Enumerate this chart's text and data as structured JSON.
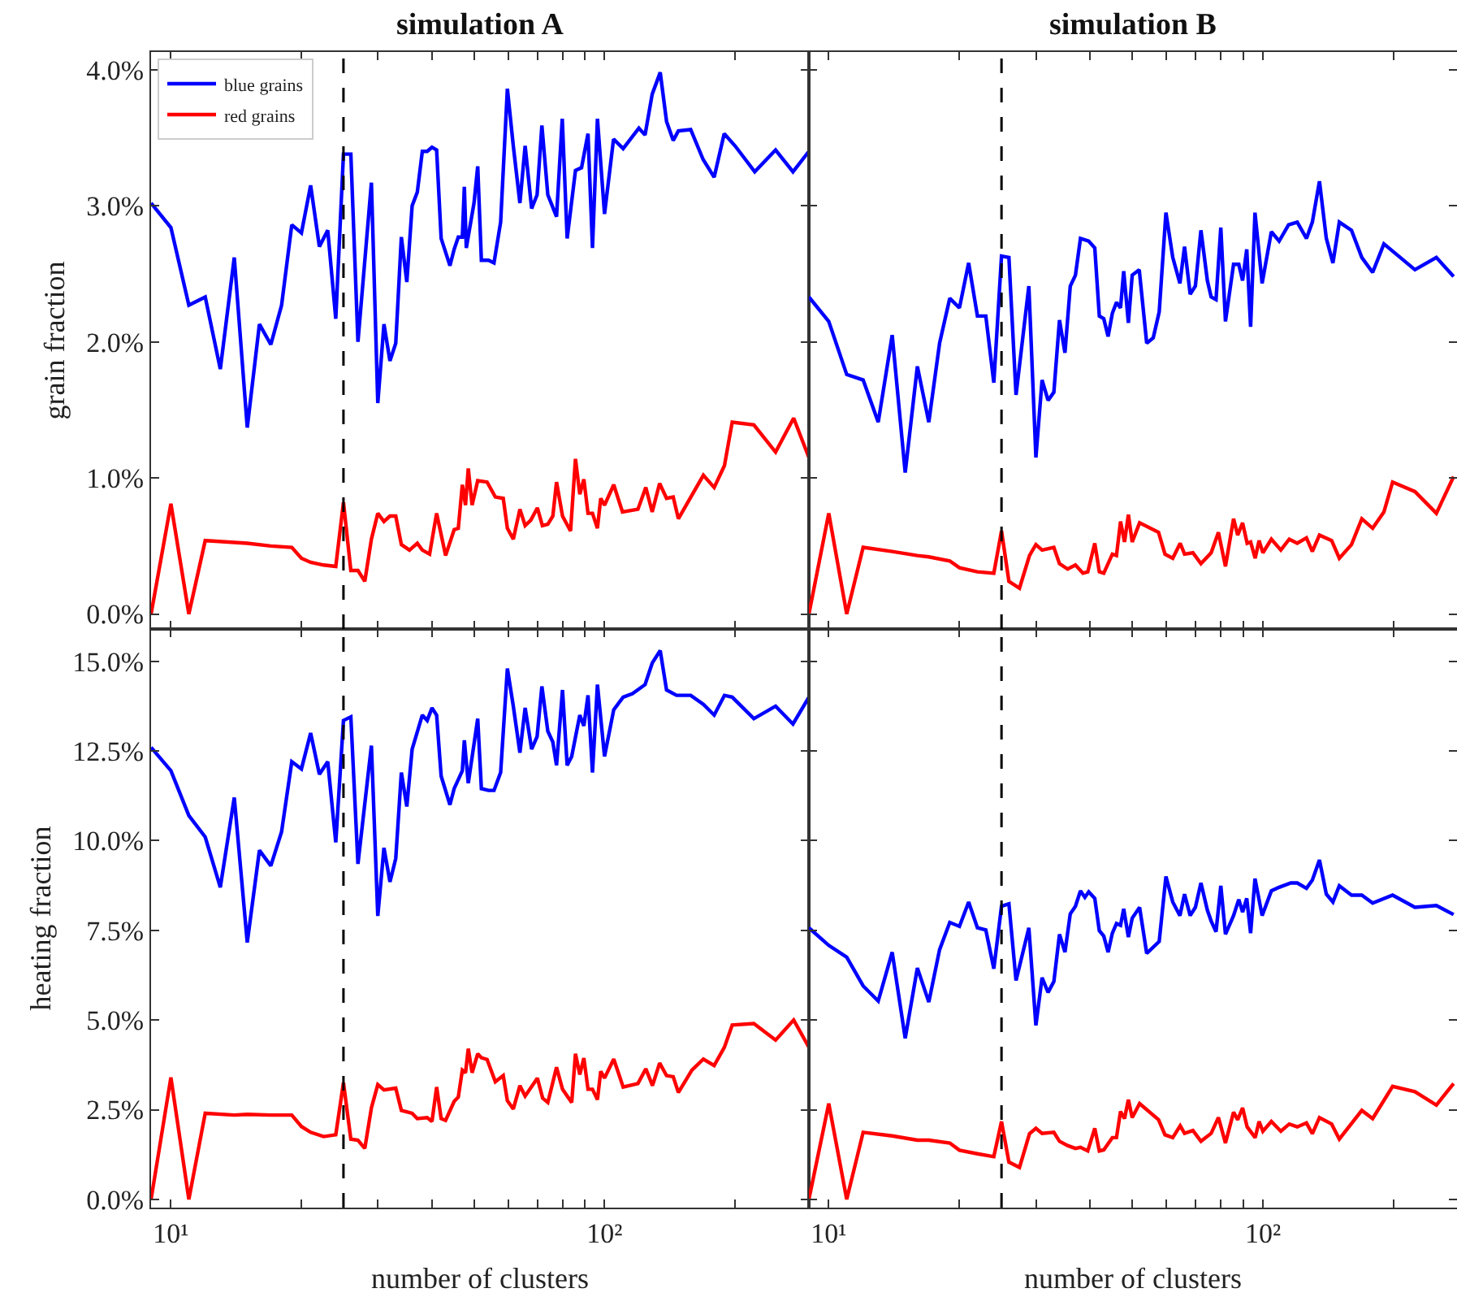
{
  "chart_data": [
    {
      "type": "line",
      "title": "simulation A",
      "ylabel": "grain fraction",
      "log": "x",
      "legend": "top left",
      "tick_labels": "y",
      "xlim": [
        9,
        296
      ],
      "ylim": [
        -0.11,
        4.13
      ],
      "xticks": [
        {
          "value": 9,
          "label": null
        },
        {
          "value": 10,
          "label": null
        },
        {
          "value": 20,
          "label": null
        },
        {
          "value": 30,
          "label": null
        },
        {
          "value": 40,
          "label": null
        },
        {
          "value": 50,
          "label": null
        },
        {
          "value": 60,
          "label": null
        },
        {
          "value": 70,
          "label": null
        },
        {
          "value": 80,
          "label": null
        },
        {
          "value": 90,
          "label": null
        },
        {
          "value": 100,
          "label": null
        },
        {
          "value": 200,
          "label": null
        }
      ],
      "yticks": [
        {
          "value": 0,
          "label": "0.0%"
        },
        {
          "value": 1,
          "label": "1.0%"
        },
        {
          "value": 2,
          "label": "2.0%"
        },
        {
          "value": 3,
          "label": "3.0%"
        },
        {
          "value": 4,
          "label": "4.0%"
        }
      ],
      "ref_lines": [
        {
          "axis": "x",
          "value": 25,
          "color": "#000000",
          "line_style": "dashed"
        }
      ],
      "series": [
        {
          "name": "blue grains",
          "color": "#0000ff",
          "x": [
            9,
            10,
            11,
            12,
            13,
            14,
            15,
            16,
            17,
            18,
            19,
            20,
            21,
            22,
            23,
            24,
            25,
            26,
            27,
            29,
            30,
            31,
            32,
            33,
            34,
            35,
            36,
            37,
            38,
            39,
            40,
            41,
            42,
            44,
            45,
            46,
            47,
            47.5,
            48,
            50,
            51,
            52,
            54,
            55.6,
            57.6,
            59.7,
            61.6,
            63.8,
            65.6,
            67.9,
            69.9,
            71.7,
            74,
            77.5,
            79.9,
            82,
            85.7,
            88.5,
            91.6,
            93.8,
            96.3,
            100,
            104.9,
            110.4,
            120,
            124,
            128.8,
            134.4,
            139,
            144,
            148,
            158,
            168.8,
            179,
            188.8,
            200,
            222,
            248,
            272,
            296
          ],
          "values": [
            3.02,
            2.84,
            2.27,
            2.33,
            1.8,
            2.62,
            1.37,
            2.13,
            1.98,
            2.27,
            2.86,
            2.8,
            3.15,
            2.7,
            2.82,
            2.17,
            3.38,
            3.38,
            2.0,
            3.17,
            1.55,
            2.13,
            1.86,
            1.99,
            2.77,
            2.44,
            3.0,
            3.1,
            3.4,
            3.4,
            3.43,
            3.41,
            2.76,
            2.56,
            2.68,
            2.77,
            2.77,
            3.14,
            2.69,
            3.02,
            3.29,
            2.6,
            2.6,
            2.58,
            2.88,
            3.86,
            3.44,
            3.02,
            3.44,
            2.98,
            3.08,
            3.59,
            3.08,
            2.92,
            3.64,
            2.76,
            3.26,
            3.28,
            3.53,
            2.69,
            3.64,
            2.94,
            3.49,
            3.42,
            3.57,
            3.52,
            3.82,
            3.98,
            3.62,
            3.48,
            3.55,
            3.56,
            3.34,
            3.21,
            3.53,
            3.44,
            3.25,
            3.41,
            3.25,
            3.4
          ]
        },
        {
          "name": "red grains",
          "color": "#ff0000",
          "x": [
            9,
            10,
            11,
            12,
            15,
            17,
            19,
            20,
            21,
            22.5,
            24,
            25,
            26,
            27,
            28,
            29,
            30,
            31,
            32,
            33,
            34,
            35.5,
            37,
            38,
            39.5,
            41,
            43,
            45,
            46,
            47,
            47.8,
            48.5,
            49.5,
            51,
            53.6,
            56,
            58.4,
            59.7,
            61.6,
            63.8,
            65.6,
            67.6,
            70,
            71.9,
            74,
            76,
            77.5,
            80,
            83.5,
            85.7,
            87.7,
            89.6,
            91.6,
            93.8,
            96.3,
            98,
            100,
            105,
            110,
            119.4,
            124.5,
            128.8,
            134,
            139,
            144,
            148,
            169,
            179,
            189,
            197,
            221,
            248,
            273,
            296
          ],
          "values": [
            0,
            0.81,
            0,
            0.54,
            0.52,
            0.5,
            0.49,
            0.41,
            0.38,
            0.36,
            0.35,
            0.82,
            0.32,
            0.32,
            0.24,
            0.55,
            0.74,
            0.68,
            0.72,
            0.72,
            0.51,
            0.47,
            0.52,
            0.47,
            0.44,
            0.74,
            0.43,
            0.62,
            0.63,
            0.95,
            0.8,
            1.07,
            0.8,
            0.98,
            0.97,
            0.86,
            0.85,
            0.63,
            0.55,
            0.77,
            0.65,
            0.69,
            0.78,
            0.65,
            0.66,
            0.72,
            0.97,
            0.72,
            0.61,
            1.14,
            0.88,
            0.99,
            0.74,
            0.74,
            0.63,
            0.85,
            0.8,
            0.95,
            0.75,
            0.77,
            0.93,
            0.75,
            0.96,
            0.85,
            0.86,
            0.7,
            1.02,
            0.93,
            1.09,
            1.41,
            1.39,
            1.19,
            1.44,
            1.15
          ]
        }
      ]
    },
    {
      "type": "line",
      "title": "simulation B",
      "log": "x",
      "tick_labels": false,
      "xlim": [
        9,
        280
      ],
      "ylim": [
        -0.11,
        4.13
      ],
      "xticks": [
        {
          "value": 9,
          "label": null
        },
        {
          "value": 10,
          "label": null
        },
        {
          "value": 20,
          "label": null
        },
        {
          "value": 30,
          "label": null
        },
        {
          "value": 40,
          "label": null
        },
        {
          "value": 50,
          "label": null
        },
        {
          "value": 60,
          "label": null
        },
        {
          "value": 70,
          "label": null
        },
        {
          "value": 80,
          "label": null
        },
        {
          "value": 90,
          "label": null
        },
        {
          "value": 100,
          "label": null
        },
        {
          "value": 200,
          "label": null
        }
      ],
      "yticks": [
        {
          "value": 0,
          "label": null
        },
        {
          "value": 1,
          "label": null
        },
        {
          "value": 2,
          "label": null
        },
        {
          "value": 3,
          "label": null
        },
        {
          "value": 4,
          "label": null
        }
      ],
      "ref_lines": [
        {
          "axis": "x",
          "value": 25,
          "color": "#000000",
          "line_style": "dashed"
        }
      ],
      "series": [
        {
          "color": "#0000ff",
          "x": [
            9,
            10,
            11,
            12,
            13,
            14,
            15,
            16,
            17,
            18,
            19,
            20,
            21,
            22,
            23,
            24,
            25,
            26,
            27,
            28.9,
            30,
            31,
            32,
            33,
            34,
            35,
            36,
            37,
            38,
            39.7,
            41,
            42,
            43,
            44,
            45,
            46,
            47,
            47.8,
            49,
            50,
            51.9,
            54,
            55.9,
            57.7,
            59.8,
            62,
            64.4,
            66,
            68,
            69.9,
            72,
            74.5,
            76,
            78,
            80,
            82,
            85.6,
            88,
            89.8,
            91.8,
            93.7,
            95.9,
            99.6,
            104.6,
            109,
            114.6,
            120,
            126,
            130,
            135,
            140,
            145,
            150,
            160,
            169,
            179,
            190,
            224,
            251,
            275
          ],
          "values": [
            2.33,
            2.15,
            1.76,
            1.72,
            1.41,
            2.05,
            1.04,
            1.82,
            1.41,
            1.99,
            2.32,
            2.25,
            2.58,
            2.19,
            2.19,
            1.7,
            2.63,
            2.62,
            1.61,
            2.41,
            1.15,
            1.72,
            1.57,
            1.63,
            2.16,
            1.92,
            2.41,
            2.49,
            2.76,
            2.74,
            2.69,
            2.19,
            2.17,
            2.04,
            2.21,
            2.29,
            2.25,
            2.52,
            2.14,
            2.49,
            2.53,
            1.99,
            2.03,
            2.22,
            2.95,
            2.62,
            2.43,
            2.7,
            2.35,
            2.41,
            2.82,
            2.45,
            2.33,
            2.31,
            2.84,
            2.15,
            2.57,
            2.57,
            2.45,
            2.68,
            2.11,
            2.95,
            2.43,
            2.81,
            2.74,
            2.86,
            2.88,
            2.76,
            2.88,
            3.18,
            2.76,
            2.58,
            2.88,
            2.82,
            2.62,
            2.51,
            2.72,
            2.53,
            2.62,
            2.48
          ]
        },
        {
          "color": "#ff0000",
          "x": [
            9,
            10,
            11,
            12,
            14,
            16,
            17,
            19,
            20,
            22,
            24,
            25,
            26,
            27.5,
            29,
            30,
            31,
            33,
            34,
            35.5,
            37,
            38.5,
            39.5,
            41,
            42,
            43,
            45,
            46,
            47,
            48,
            49,
            50,
            52,
            57.5,
            59.5,
            62,
            64.5,
            66,
            69,
            72,
            76,
            79,
            82,
            85.6,
            87.5,
            89.8,
            92,
            93.7,
            96,
            98,
            100,
            104.6,
            110,
            115,
            120,
            126,
            130,
            135,
            144,
            150,
            160,
            169,
            179,
            190,
            199,
            224,
            251,
            275
          ],
          "values": [
            0,
            0.74,
            0,
            0.49,
            0.46,
            0.43,
            0.42,
            0.39,
            0.34,
            0.31,
            0.3,
            0.61,
            0.24,
            0.19,
            0.43,
            0.51,
            0.47,
            0.49,
            0.37,
            0.33,
            0.36,
            0.3,
            0.31,
            0.52,
            0.31,
            0.3,
            0.44,
            0.43,
            0.68,
            0.53,
            0.73,
            0.53,
            0.67,
            0.6,
            0.44,
            0.41,
            0.52,
            0.44,
            0.45,
            0.37,
            0.45,
            0.6,
            0.35,
            0.7,
            0.58,
            0.67,
            0.52,
            0.53,
            0.41,
            0.54,
            0.45,
            0.55,
            0.47,
            0.55,
            0.52,
            0.56,
            0.46,
            0.58,
            0.54,
            0.41,
            0.51,
            0.7,
            0.63,
            0.75,
            0.97,
            0.9,
            0.74,
            1.01
          ]
        }
      ]
    },
    {
      "type": "line",
      "ylabel": "heating fraction",
      "xlabel": "number of clusters",
      "log": "x",
      "xlim": [
        9,
        296
      ],
      "ylim": [
        -0.23,
        15.9
      ],
      "xticks": [
        {
          "value": 9,
          "label": null
        },
        {
          "value": 10,
          "label": "10¹"
        },
        {
          "value": 20,
          "label": null
        },
        {
          "value": 30,
          "label": null
        },
        {
          "value": 40,
          "label": null
        },
        {
          "value": 50,
          "label": null
        },
        {
          "value": 60,
          "label": null
        },
        {
          "value": 70,
          "label": null
        },
        {
          "value": 80,
          "label": null
        },
        {
          "value": 90,
          "label": null
        },
        {
          "value": 100,
          "label": "10²"
        },
        {
          "value": 200,
          "label": null
        }
      ],
      "yticks": [
        {
          "value": 0,
          "label": "0.0%"
        },
        {
          "value": 2.5,
          "label": "2.5%"
        },
        {
          "value": 5,
          "label": "5.0%"
        },
        {
          "value": 7.5,
          "label": "7.5%"
        },
        {
          "value": 10,
          "label": "10.0%"
        },
        {
          "value": 12.5,
          "label": "12.5%"
        },
        {
          "value": 15,
          "label": "15.0%"
        }
      ],
      "ref_lines": [
        {
          "axis": "x",
          "value": 25,
          "color": "#000000",
          "line_style": "dashed"
        }
      ],
      "series": [
        {
          "color": "#0000ff",
          "x": [
            9,
            10,
            11,
            12,
            13,
            14,
            15,
            16,
            17,
            18,
            19,
            20,
            21,
            22,
            23,
            24,
            25,
            26,
            27,
            29,
            30,
            31,
            32,
            33,
            34,
            35,
            36,
            38,
            39,
            40,
            41,
            42,
            44,
            45,
            47,
            47.5,
            48.5,
            51,
            52,
            54,
            55.6,
            57.6,
            59.7,
            61.6,
            63.8,
            65.6,
            67.9,
            69.9,
            71.7,
            74,
            76,
            77.5,
            80,
            82,
            84,
            87.7,
            89.6,
            91.6,
            93.8,
            96.3,
            100,
            105,
            110.4,
            116,
            124,
            128.8,
            134.4,
            139,
            146.6,
            158,
            169,
            179,
            189,
            197,
            221,
            248,
            272,
            296
          ],
          "values": [
            12.6,
            11.95,
            10.7,
            10.1,
            8.7,
            11.2,
            7.16,
            9.73,
            9.3,
            10.25,
            12.2,
            12.0,
            13.0,
            11.85,
            12.2,
            9.95,
            13.35,
            13.45,
            9.35,
            12.65,
            7.9,
            9.8,
            8.85,
            9.5,
            11.9,
            10.95,
            12.55,
            13.5,
            13.35,
            13.7,
            13.5,
            11.8,
            11.0,
            11.45,
            11.95,
            12.8,
            11.6,
            13.4,
            11.45,
            11.4,
            11.4,
            11.9,
            14.8,
            13.75,
            12.45,
            13.7,
            12.55,
            12.9,
            14.3,
            13.05,
            12.75,
            12.1,
            14.2,
            12.1,
            12.35,
            13.5,
            13.2,
            14.05,
            11.9,
            14.35,
            12.35,
            13.65,
            14.0,
            14.1,
            14.35,
            14.95,
            15.3,
            14.2,
            14.05,
            14.05,
            13.8,
            13.5,
            14.05,
            14.0,
            13.4,
            13.75,
            13.25,
            14.0
          ]
        },
        {
          "color": "#ff0000",
          "x": [
            9,
            10,
            11,
            12,
            14,
            15,
            17,
            19,
            20,
            21,
            22.5,
            24,
            25,
            26,
            27,
            28,
            29,
            30,
            31,
            33,
            34,
            36,
            37,
            39,
            40,
            41,
            42,
            43,
            45,
            46,
            47,
            47.8,
            48.5,
            49.5,
            51,
            52,
            53.6,
            56,
            58.4,
            59.7,
            61.6,
            63.8,
            65.6,
            70,
            72,
            74,
            77.5,
            80,
            84,
            85.7,
            87.7,
            89.6,
            91.6,
            93.8,
            96.3,
            98,
            100,
            105,
            110.4,
            119.4,
            124.5,
            129,
            134,
            139,
            144,
            148,
            159,
            169,
            179,
            189,
            197,
            221,
            248,
            273,
            296
          ],
          "values": [
            0,
            3.4,
            0,
            2.4,
            2.35,
            2.37,
            2.35,
            2.35,
            2.03,
            1.87,
            1.75,
            1.8,
            3.25,
            1.68,
            1.65,
            1.42,
            2.55,
            3.2,
            3.05,
            3.1,
            2.48,
            2.4,
            2.25,
            2.28,
            2.17,
            3.13,
            2.25,
            2.2,
            2.73,
            2.85,
            3.6,
            3.53,
            4.2,
            3.53,
            4.06,
            3.95,
            3.9,
            3.28,
            3.45,
            2.75,
            2.52,
            3.17,
            2.88,
            3.38,
            2.82,
            2.7,
            3.68,
            3.07,
            2.7,
            4.06,
            3.48,
            3.94,
            3.07,
            3.07,
            2.78,
            3.57,
            3.38,
            3.91,
            3.13,
            3.23,
            3.64,
            3.17,
            3.8,
            3.45,
            3.42,
            2.98,
            3.6,
            3.91,
            3.73,
            4.24,
            4.86,
            4.9,
            4.44,
            5.0,
            4.24
          ]
        }
      ]
    },
    {
      "type": "line",
      "xlabel": "number of clusters",
      "log": "x",
      "tick_labels": "x",
      "xlim": [
        9,
        280
      ],
      "ylim": [
        -0.23,
        15.9
      ],
      "xticks": [
        {
          "value": 9,
          "label": null
        },
        {
          "value": 10,
          "label": "10¹"
        },
        {
          "value": 20,
          "label": null
        },
        {
          "value": 30,
          "label": null
        },
        {
          "value": 40,
          "label": null
        },
        {
          "value": 50,
          "label": null
        },
        {
          "value": 60,
          "label": null
        },
        {
          "value": 70,
          "label": null
        },
        {
          "value": 80,
          "label": null
        },
        {
          "value": 90,
          "label": null
        },
        {
          "value": 100,
          "label": "10²"
        },
        {
          "value": 200,
          "label": null
        }
      ],
      "yticks": [
        {
          "value": 0,
          "label": null
        },
        {
          "value": 2.5,
          "label": null
        },
        {
          "value": 5,
          "label": null
        },
        {
          "value": 7.5,
          "label": null
        },
        {
          "value": 10,
          "label": null
        },
        {
          "value": 12.5,
          "label": null
        },
        {
          "value": 15,
          "label": null
        }
      ],
      "ref_lines": [
        {
          "axis": "x",
          "value": 25,
          "color": "#000000",
          "line_style": "dashed"
        }
      ],
      "series": [
        {
          "color": "#0000ff",
          "x": [
            9,
            10,
            11,
            12,
            13,
            14,
            15,
            16,
            17,
            18,
            19,
            20,
            21,
            22,
            23,
            24,
            25,
            26,
            27,
            28.9,
            30,
            31,
            32,
            33,
            34,
            35,
            36,
            37,
            38,
            38.9,
            39.7,
            41,
            42,
            43,
            44,
            45,
            46,
            47,
            47.8,
            49,
            50,
            52,
            54,
            57.7,
            59.8,
            62,
            64.4,
            66,
            68,
            69.9,
            72,
            74.5,
            76,
            78,
            80,
            82,
            85.6,
            88,
            89.8,
            91.8,
            93.7,
            95.9,
            99.6,
            104.6,
            109,
            116,
            120,
            126,
            130,
            135,
            140,
            145,
            150,
            160,
            169,
            179,
            199,
            224,
            251,
            275
          ],
          "values": [
            7.57,
            7.08,
            6.75,
            5.95,
            5.53,
            6.89,
            4.49,
            6.45,
            5.5,
            6.96,
            7.72,
            7.61,
            8.29,
            7.57,
            7.51,
            6.43,
            8.17,
            8.24,
            6.1,
            7.57,
            4.85,
            6.18,
            5.77,
            6.07,
            7.39,
            6.89,
            7.96,
            8.17,
            8.6,
            8.42,
            8.57,
            8.39,
            7.49,
            7.34,
            6.89,
            7.42,
            7.69,
            7.64,
            8.1,
            7.31,
            7.84,
            8.14,
            6.86,
            7.19,
            9.0,
            8.29,
            7.91,
            8.51,
            7.91,
            8.14,
            8.82,
            8.06,
            7.76,
            7.46,
            8.74,
            7.39,
            7.91,
            8.36,
            8.01,
            8.39,
            7.42,
            8.94,
            7.91,
            8.6,
            8.7,
            8.82,
            8.82,
            8.67,
            8.9,
            9.46,
            8.51,
            8.29,
            8.74,
            8.48,
            8.48,
            8.26,
            8.48,
            8.14,
            8.19,
            7.94
          ]
        },
        {
          "color": "#ff0000",
          "x": [
            9,
            10,
            11,
            12,
            14,
            16,
            17,
            19,
            20,
            22,
            24,
            25,
            26,
            27.5,
            29,
            30,
            31,
            33,
            34,
            35.5,
            37,
            38,
            39.5,
            41,
            42,
            43,
            45,
            46,
            47,
            48,
            49,
            50,
            52,
            57.5,
            59.5,
            62,
            64.5,
            66,
            69,
            72,
            76,
            79,
            82,
            85.6,
            87.5,
            89.8,
            92,
            96,
            98,
            100,
            104.6,
            110,
            115,
            120,
            126,
            130,
            135,
            144,
            150,
            169,
            179,
            199,
            224,
            251,
            275
          ],
          "values": [
            0,
            2.67,
            0,
            1.87,
            1.77,
            1.65,
            1.65,
            1.57,
            1.37,
            1.27,
            1.19,
            2.17,
            1.04,
            0.89,
            1.83,
            1.98,
            1.84,
            1.87,
            1.62,
            1.5,
            1.42,
            1.45,
            1.35,
            1.98,
            1.35,
            1.38,
            1.72,
            1.72,
            2.45,
            2.25,
            2.78,
            2.28,
            2.67,
            2.22,
            1.8,
            1.72,
            2.05,
            1.84,
            1.92,
            1.62,
            1.84,
            2.28,
            1.57,
            2.43,
            2.22,
            2.55,
            2.02,
            1.72,
            2.17,
            1.9,
            2.17,
            1.9,
            2.1,
            2.02,
            2.13,
            1.83,
            2.28,
            2.1,
            1.68,
            2.48,
            2.25,
            3.15,
            3.0,
            2.63,
            3.23
          ]
        }
      ]
    }
  ]
}
